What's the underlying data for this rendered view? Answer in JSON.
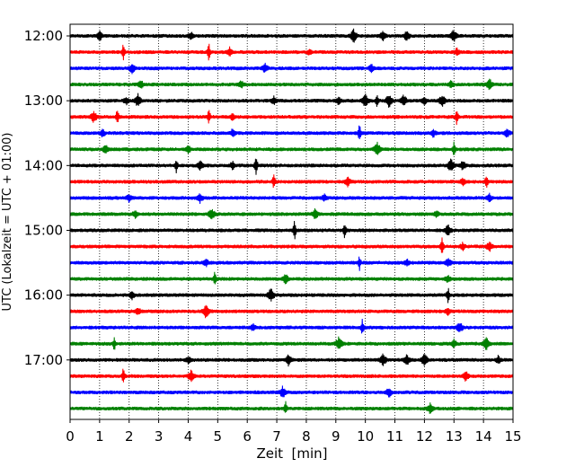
{
  "chart_data": {
    "type": "line",
    "title": "",
    "xlabel": "Zeit  [min]",
    "ylabel": "UTC (Lokalzeit = UTC + 01:00)",
    "xlim": [
      0,
      15
    ],
    "x_ticks": [
      0,
      1,
      2,
      3,
      4,
      5,
      6,
      7,
      8,
      9,
      10,
      11,
      12,
      13,
      14,
      15
    ],
    "y_tick_labels": [
      "12:00",
      "13:00",
      "14:00",
      "15:00",
      "16:00",
      "17:00"
    ],
    "trace_interval_min": 15,
    "grid": "vertical dotted",
    "series_colors": [
      "#000000",
      "#ff0000",
      "#0000ff",
      "#008000"
    ],
    "series": [
      {
        "start": "12:00",
        "color": "#000000",
        "events": [
          [
            1.0,
            7
          ],
          [
            4.1,
            6
          ],
          [
            9.6,
            9
          ],
          [
            10.6,
            7
          ],
          [
            11.4,
            7
          ],
          [
            13.0,
            9
          ]
        ]
      },
      {
        "start": "12:15",
        "color": "#ff0000",
        "events": [
          [
            1.8,
            11
          ],
          [
            4.7,
            12
          ],
          [
            5.4,
            7
          ],
          [
            8.1,
            5
          ],
          [
            13.1,
            6
          ]
        ]
      },
      {
        "start": "12:30",
        "color": "#0000ff",
        "events": [
          [
            2.1,
            7
          ],
          [
            6.6,
            7
          ],
          [
            10.2,
            6
          ]
        ]
      },
      {
        "start": "12:45",
        "color": "#008000",
        "events": [
          [
            2.4,
            6
          ],
          [
            5.8,
            6
          ],
          [
            12.9,
            6
          ],
          [
            14.2,
            8
          ]
        ]
      },
      {
        "start": "13:00",
        "color": "#000000",
        "events": [
          [
            1.9,
            6
          ],
          [
            2.3,
            9
          ],
          [
            6.9,
            6
          ],
          [
            9.1,
            6
          ],
          [
            10.0,
            9
          ],
          [
            10.4,
            10
          ],
          [
            10.8,
            9
          ],
          [
            11.3,
            8
          ],
          [
            12.0,
            6
          ],
          [
            12.6,
            8
          ]
        ]
      },
      {
        "start": "13:15",
        "color": "#ff0000",
        "events": [
          [
            0.8,
            8
          ],
          [
            1.6,
            11
          ],
          [
            4.7,
            11
          ],
          [
            5.5,
            6
          ],
          [
            13.1,
            12
          ]
        ]
      },
      {
        "start": "13:30",
        "color": "#0000ff",
        "events": [
          [
            1.1,
            6
          ],
          [
            5.5,
            6
          ],
          [
            9.8,
            12
          ],
          [
            12.3,
            6
          ],
          [
            14.8,
            7
          ]
        ]
      },
      {
        "start": "13:45",
        "color": "#008000",
        "events": [
          [
            1.2,
            7
          ],
          [
            4.0,
            6
          ],
          [
            10.4,
            9
          ],
          [
            13.0,
            11
          ]
        ]
      },
      {
        "start": "14:00",
        "color": "#000000",
        "events": [
          [
            3.6,
            10
          ],
          [
            4.4,
            7
          ],
          [
            5.5,
            6
          ],
          [
            6.3,
            13
          ],
          [
            12.9,
            9
          ],
          [
            13.3,
            7
          ]
        ]
      },
      {
        "start": "14:15",
        "color": "#ff0000",
        "events": [
          [
            6.9,
            11
          ],
          [
            9.4,
            7
          ],
          [
            13.3,
            6
          ],
          [
            14.1,
            10
          ]
        ]
      },
      {
        "start": "14:30",
        "color": "#0000ff",
        "events": [
          [
            2.0,
            6
          ],
          [
            4.4,
            7
          ],
          [
            8.6,
            6
          ],
          [
            14.2,
            6
          ]
        ]
      },
      {
        "start": "14:45",
        "color": "#008000",
        "events": [
          [
            2.2,
            6
          ],
          [
            4.8,
            8
          ],
          [
            8.3,
            8
          ],
          [
            12.4,
            6
          ]
        ]
      },
      {
        "start": "15:00",
        "color": "#000000",
        "events": [
          [
            7.6,
            13
          ],
          [
            9.3,
            11
          ],
          [
            12.8,
            8
          ]
        ]
      },
      {
        "start": "15:15",
        "color": "#ff0000",
        "events": [
          [
            12.6,
            12
          ],
          [
            13.3,
            6
          ],
          [
            14.2,
            7
          ]
        ]
      },
      {
        "start": "15:30",
        "color": "#0000ff",
        "events": [
          [
            4.6,
            6
          ],
          [
            9.8,
            10
          ],
          [
            11.4,
            6
          ],
          [
            12.8,
            7
          ]
        ]
      },
      {
        "start": "15:45",
        "color": "#008000",
        "events": [
          [
            4.9,
            11
          ],
          [
            7.3,
            7
          ],
          [
            12.8,
            6
          ]
        ]
      },
      {
        "start": "16:00",
        "color": "#000000",
        "events": [
          [
            2.1,
            6
          ],
          [
            6.8,
            9
          ],
          [
            12.8,
            11
          ]
        ]
      },
      {
        "start": "16:15",
        "color": "#ff0000",
        "events": [
          [
            2.3,
            6
          ],
          [
            4.6,
            9
          ],
          [
            12.8,
            6
          ]
        ]
      },
      {
        "start": "16:30",
        "color": "#0000ff",
        "events": [
          [
            6.2,
            6
          ],
          [
            9.9,
            11
          ],
          [
            13.2,
            8
          ]
        ]
      },
      {
        "start": "16:45",
        "color": "#008000",
        "events": [
          [
            1.5,
            10
          ],
          [
            9.1,
            9
          ],
          [
            13.0,
            6
          ],
          [
            14.1,
            9
          ]
        ]
      },
      {
        "start": "17:00",
        "color": "#000000",
        "events": [
          [
            4.0,
            6
          ],
          [
            7.4,
            8
          ],
          [
            10.6,
            9
          ],
          [
            11.4,
            8
          ],
          [
            12.0,
            9
          ],
          [
            14.5,
            6
          ]
        ]
      },
      {
        "start": "17:15",
        "color": "#ff0000",
        "events": [
          [
            1.8,
            11
          ],
          [
            4.1,
            8
          ],
          [
            13.4,
            7
          ]
        ]
      },
      {
        "start": "17:30",
        "color": "#0000ff",
        "events": [
          [
            7.2,
            8
          ],
          [
            10.8,
            7
          ]
        ]
      },
      {
        "start": "17:45",
        "color": "#008000",
        "events": [
          [
            7.3,
            10
          ],
          [
            12.2,
            8
          ]
        ]
      }
    ]
  }
}
